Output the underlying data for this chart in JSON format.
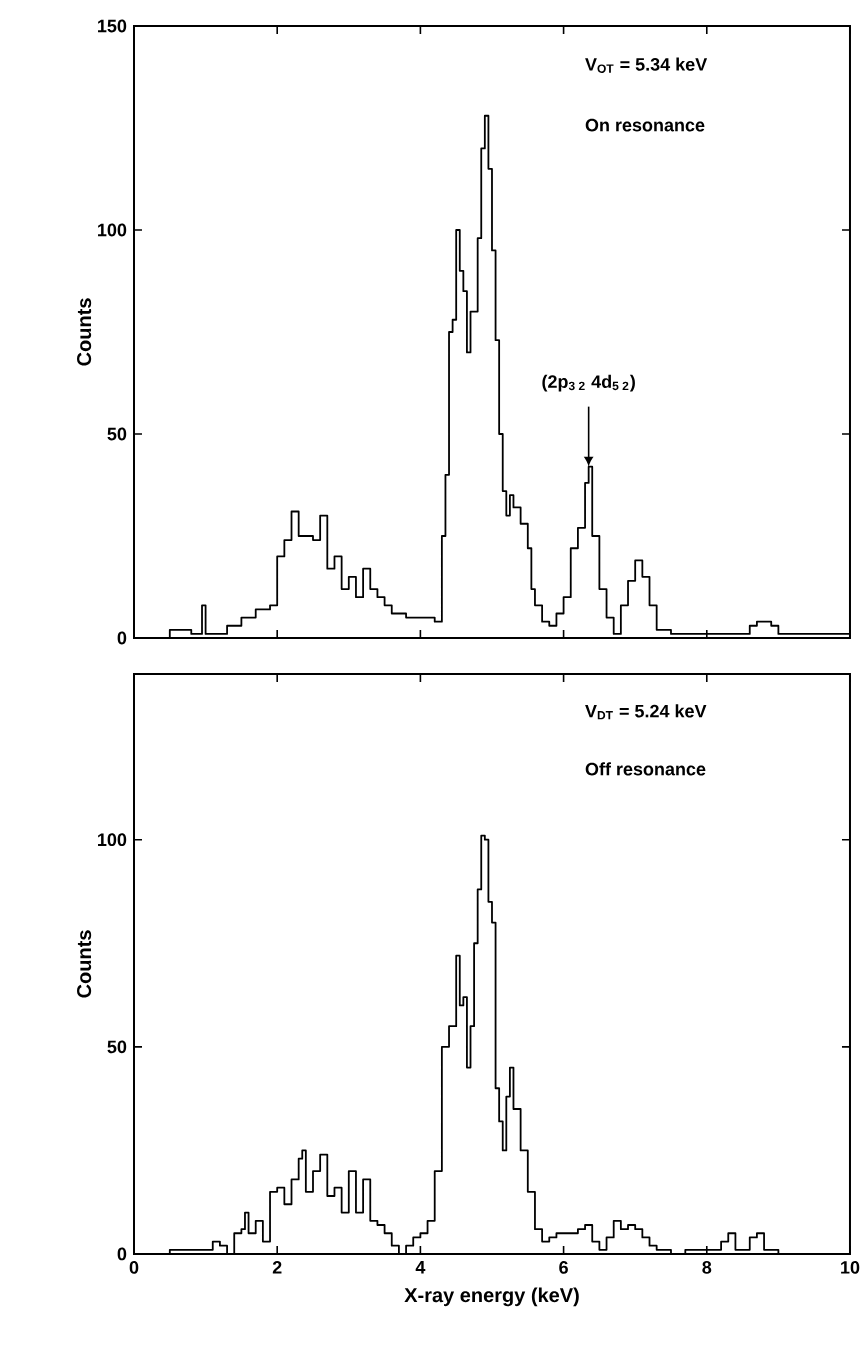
{
  "chart_data": [
    {
      "type": "step",
      "ylabel": "Counts",
      "xlim": [
        0,
        10
      ],
      "xticks": [
        0,
        2,
        4,
        6,
        8,
        10
      ],
      "ylim": [
        0,
        150
      ],
      "yticks": [
        0,
        50,
        100,
        150
      ],
      "tick_labels": "y",
      "x": [
        0,
        0.5,
        0.8,
        0.95,
        1.0,
        1.3,
        1.5,
        1.7,
        1.9,
        2.0,
        2.1,
        2.2,
        2.3,
        2.5,
        2.6,
        2.7,
        2.8,
        2.9,
        3.0,
        3.1,
        3.2,
        3.3,
        3.4,
        3.5,
        3.6,
        3.8,
        4.0,
        4.2,
        4.3,
        4.35,
        4.4,
        4.45,
        4.5,
        4.55,
        4.6,
        4.65,
        4.7,
        4.8,
        4.85,
        4.9,
        4.95,
        5.0,
        5.05,
        5.1,
        5.15,
        5.2,
        5.25,
        5.3,
        5.4,
        5.5,
        5.55,
        5.6,
        5.7,
        5.8,
        5.9,
        6.0,
        6.1,
        6.2,
        6.3,
        6.35,
        6.4,
        6.5,
        6.6,
        6.7,
        6.8,
        6.9,
        7.0,
        7.1,
        7.2,
        7.3,
        7.5,
        8.0,
        8.4,
        8.6,
        8.7,
        8.9,
        9.0,
        9.5,
        10
      ],
      "values": [
        0,
        2,
        1,
        8,
        1,
        3,
        5,
        7,
        8,
        20,
        24,
        31,
        25,
        24,
        30,
        17,
        20,
        12,
        15,
        10,
        17,
        12,
        10,
        8,
        6,
        5,
        5,
        4,
        25,
        40,
        75,
        78,
        100,
        90,
        85,
        70,
        80,
        98,
        120,
        128,
        115,
        95,
        73,
        50,
        36,
        30,
        35,
        32,
        28,
        22,
        12,
        8,
        4,
        3,
        6,
        10,
        22,
        27,
        38,
        42,
        25,
        12,
        5,
        1,
        8,
        14,
        19,
        15,
        8,
        2,
        1,
        1,
        1,
        3,
        4,
        3,
        1,
        1,
        1
      ],
      "color": "#000000",
      "annotations": [
        "V$_{OT}$ = 5.34 keV",
        "On resonance",
        {
          "text": "(2p$_{3 2}$ 4d$_{5 2}$)",
          "x": 6.35,
          "y": 42
        }
      ]
    },
    {
      "type": "step",
      "xlabel": "X-ray energy (keV)",
      "ylabel": "Counts",
      "xlim": [
        0,
        10
      ],
      "xticks": [
        0,
        2,
        4,
        6,
        8,
        10
      ],
      "ylim": [
        0,
        140
      ],
      "yticks": [
        0,
        50,
        100
      ],
      "x": [
        0,
        0.5,
        1.0,
        1.1,
        1.2,
        1.3,
        1.4,
        1.5,
        1.55,
        1.6,
        1.7,
        1.8,
        1.9,
        2.0,
        2.1,
        2.2,
        2.3,
        2.35,
        2.4,
        2.5,
        2.6,
        2.7,
        2.8,
        2.9,
        3.0,
        3.1,
        3.2,
        3.3,
        3.4,
        3.5,
        3.6,
        3.7,
        3.8,
        3.9,
        4.0,
        4.1,
        4.2,
        4.3,
        4.4,
        4.5,
        4.55,
        4.6,
        4.65,
        4.7,
        4.75,
        4.8,
        4.85,
        4.9,
        4.95,
        5.0,
        5.05,
        5.1,
        5.15,
        5.2,
        5.25,
        5.3,
        5.4,
        5.5,
        5.6,
        5.7,
        5.8,
        5.9,
        6.0,
        6.1,
        6.2,
        6.3,
        6.4,
        6.5,
        6.6,
        6.7,
        6.8,
        6.9,
        7.0,
        7.1,
        7.2,
        7.3,
        7.5,
        7.7,
        8.0,
        8.2,
        8.3,
        8.4,
        8.6,
        8.7,
        8.8,
        9.0,
        10
      ],
      "values": [
        0,
        1,
        1,
        3,
        2,
        0,
        5,
        6,
        10,
        5,
        8,
        3,
        15,
        16,
        12,
        18,
        23,
        25,
        15,
        20,
        24,
        14,
        16,
        10,
        20,
        10,
        18,
        8,
        7,
        5,
        2,
        0,
        2,
        4,
        5,
        8,
        20,
        50,
        55,
        72,
        60,
        62,
        45,
        55,
        75,
        88,
        101,
        100,
        85,
        80,
        40,
        32,
        25,
        38,
        45,
        35,
        25,
        15,
        6,
        3,
        4,
        5,
        5,
        5,
        6,
        7,
        3,
        1,
        4,
        8,
        6,
        7,
        6,
        4,
        2,
        1,
        0,
        1,
        1,
        3,
        5,
        1,
        4,
        5,
        1,
        0,
        0
      ],
      "color": "#000000",
      "annotations": [
        "V$_{DT}$ = 5.24 keV",
        "Off resonance"
      ]
    }
  ]
}
